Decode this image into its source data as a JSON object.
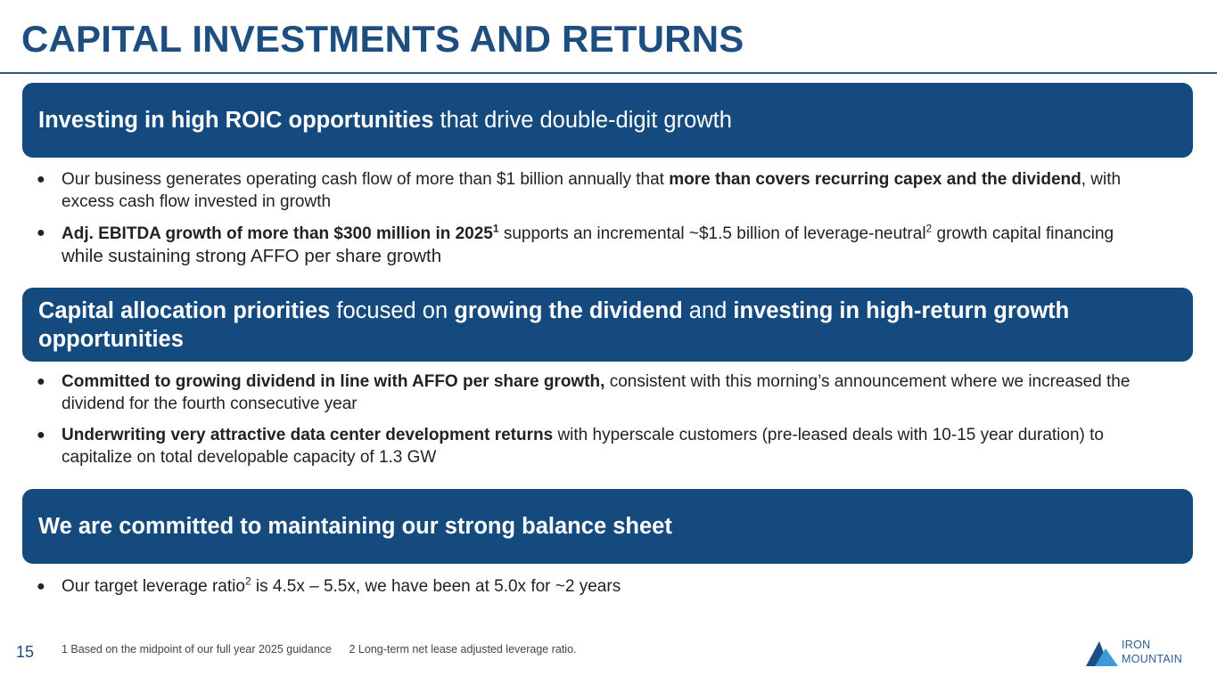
{
  "title": "CAPITAL INVESTMENTS AND RETURNS",
  "sections": [
    {
      "banner": [
        {
          "text": "Investing in high ROIC opportunities",
          "bold": true
        },
        {
          "text": " that drive double-digit growth",
          "bold": false
        }
      ],
      "bullets": [
        {
          "parts": [
            {
              "text": "Our business generates operating cash flow of more than $1 billion annually that ",
              "bold": false
            },
            {
              "text": "more than covers recurring capex and the dividend",
              "bold": true
            },
            {
              "text": ", with excess cash flow invested in growth",
              "bold": false
            }
          ]
        },
        {
          "parts": [
            {
              "text": "Adj. EBITDA growth of more than $300 million in 2025",
              "bold": true
            },
            {
              "text": "1",
              "bold": true,
              "sup": true
            },
            {
              "text": " supports an incremental ~$1.5 billion of leverage-neutral",
              "bold": false
            },
            {
              "text": "2",
              "bold": false,
              "sup": true
            },
            {
              "text": " growth capital financing",
              "bold": false
            },
            {
              "text": " while sustaining strong AFFO per share growth",
              "bold": false,
              "bigger": true
            }
          ]
        }
      ]
    },
    {
      "banner": [
        {
          "text": "Capital allocation priorities",
          "bold": true
        },
        {
          "text": " focused on ",
          "bold": false
        },
        {
          "text": "growing the dividend",
          "bold": true
        },
        {
          "text": " and ",
          "bold": false
        },
        {
          "text": "investing in high-return growth opportunities",
          "bold": true
        }
      ],
      "bullets": [
        {
          "parts": [
            {
              "text": "Committed to growing dividend in line with AFFO per share growth,",
              "bold": true
            },
            {
              "text": " consistent with this morning’s announcement where we increased the dividend for the fourth consecutive year",
              "bold": false
            }
          ]
        },
        {
          "parts": [
            {
              "text": "Underwriting very attractive data center development returns",
              "bold": true
            },
            {
              "text": " with hyperscale customers (pre-leased deals with 10-15 year duration) to capitalize on total developable capacity of 1.3 GW",
              "bold": false
            }
          ]
        }
      ]
    },
    {
      "banner": [
        {
          "text": "We are committed to maintaining our strong balance sheet",
          "bold": true
        }
      ],
      "bullets": [
        {
          "parts": [
            {
              "text": "Our target leverage ratio",
              "bold": false
            },
            {
              "text": "2",
              "bold": false,
              "sup": true
            },
            {
              "text": " is 4.5x – 5.5x, we have been at 5.0x for ~2 years",
              "bold": false
            }
          ]
        }
      ]
    }
  ],
  "bullet_symbol": "●",
  "page_number": "15",
  "footnotes": [
    "1 Based on the midpoint of our full year 2025 guidance",
    "2 Long-term net lease adjusted leverage ratio."
  ],
  "logo": {
    "line1": "IRON",
    "line2": "MOUNTAIN",
    "colors": {
      "dark": "#1c4f86",
      "light": "#3d9ad6"
    }
  }
}
